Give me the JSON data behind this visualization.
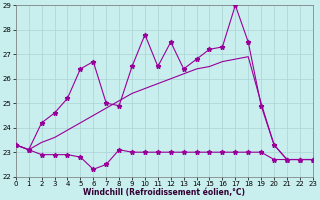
{
  "xlabel": "Windchill (Refroidissement éolien,°C)",
  "xlim": [
    0,
    23
  ],
  "ylim": [
    22,
    29
  ],
  "xticks": [
    0,
    1,
    2,
    3,
    4,
    5,
    6,
    7,
    8,
    9,
    10,
    11,
    12,
    13,
    14,
    15,
    16,
    17,
    18,
    19,
    20,
    21,
    22,
    23
  ],
  "yticks": [
    22,
    23,
    24,
    25,
    26,
    27,
    28,
    29
  ],
  "background_color": "#c8eeee",
  "grid_color": "#aad4d4",
  "line_color": "#990099",
  "top_x": [
    0,
    1,
    2,
    3,
    4,
    5,
    6,
    7,
    8,
    9,
    10,
    11,
    12,
    13,
    14,
    15,
    16,
    17,
    18,
    19,
    20,
    21,
    22,
    23
  ],
  "top_y": [
    23.3,
    23.1,
    24.2,
    24.6,
    25.2,
    26.4,
    26.7,
    25.0,
    24.9,
    26.5,
    27.8,
    26.5,
    27.5,
    26.4,
    26.8,
    27.2,
    27.3,
    29.0,
    27.5,
    24.9,
    23.3,
    22.7,
    22.7,
    22.7
  ],
  "mid_x": [
    0,
    1,
    2,
    3,
    4,
    5,
    6,
    7,
    8,
    9,
    10,
    11,
    12,
    13,
    14,
    15,
    16,
    17,
    18,
    19,
    20,
    21,
    22,
    23
  ],
  "mid_y": [
    23.3,
    23.1,
    23.4,
    23.6,
    23.9,
    24.2,
    24.5,
    24.8,
    25.1,
    25.4,
    25.6,
    25.8,
    26.0,
    26.2,
    26.4,
    26.5,
    26.7,
    26.8,
    26.9,
    25.0,
    23.3,
    22.7,
    22.7,
    22.7
  ],
  "bot_x": [
    0,
    1,
    2,
    3,
    4,
    5,
    6,
    7,
    8,
    9,
    10,
    11,
    12,
    13,
    14,
    15,
    16,
    17,
    18,
    19,
    20,
    21,
    22,
    23
  ],
  "bot_y": [
    23.3,
    23.1,
    22.9,
    22.9,
    22.9,
    22.8,
    22.3,
    22.5,
    23.1,
    23.0,
    23.0,
    23.0,
    23.0,
    23.0,
    23.0,
    23.0,
    23.0,
    23.0,
    23.0,
    23.0,
    22.7,
    22.7,
    22.7,
    22.7
  ]
}
